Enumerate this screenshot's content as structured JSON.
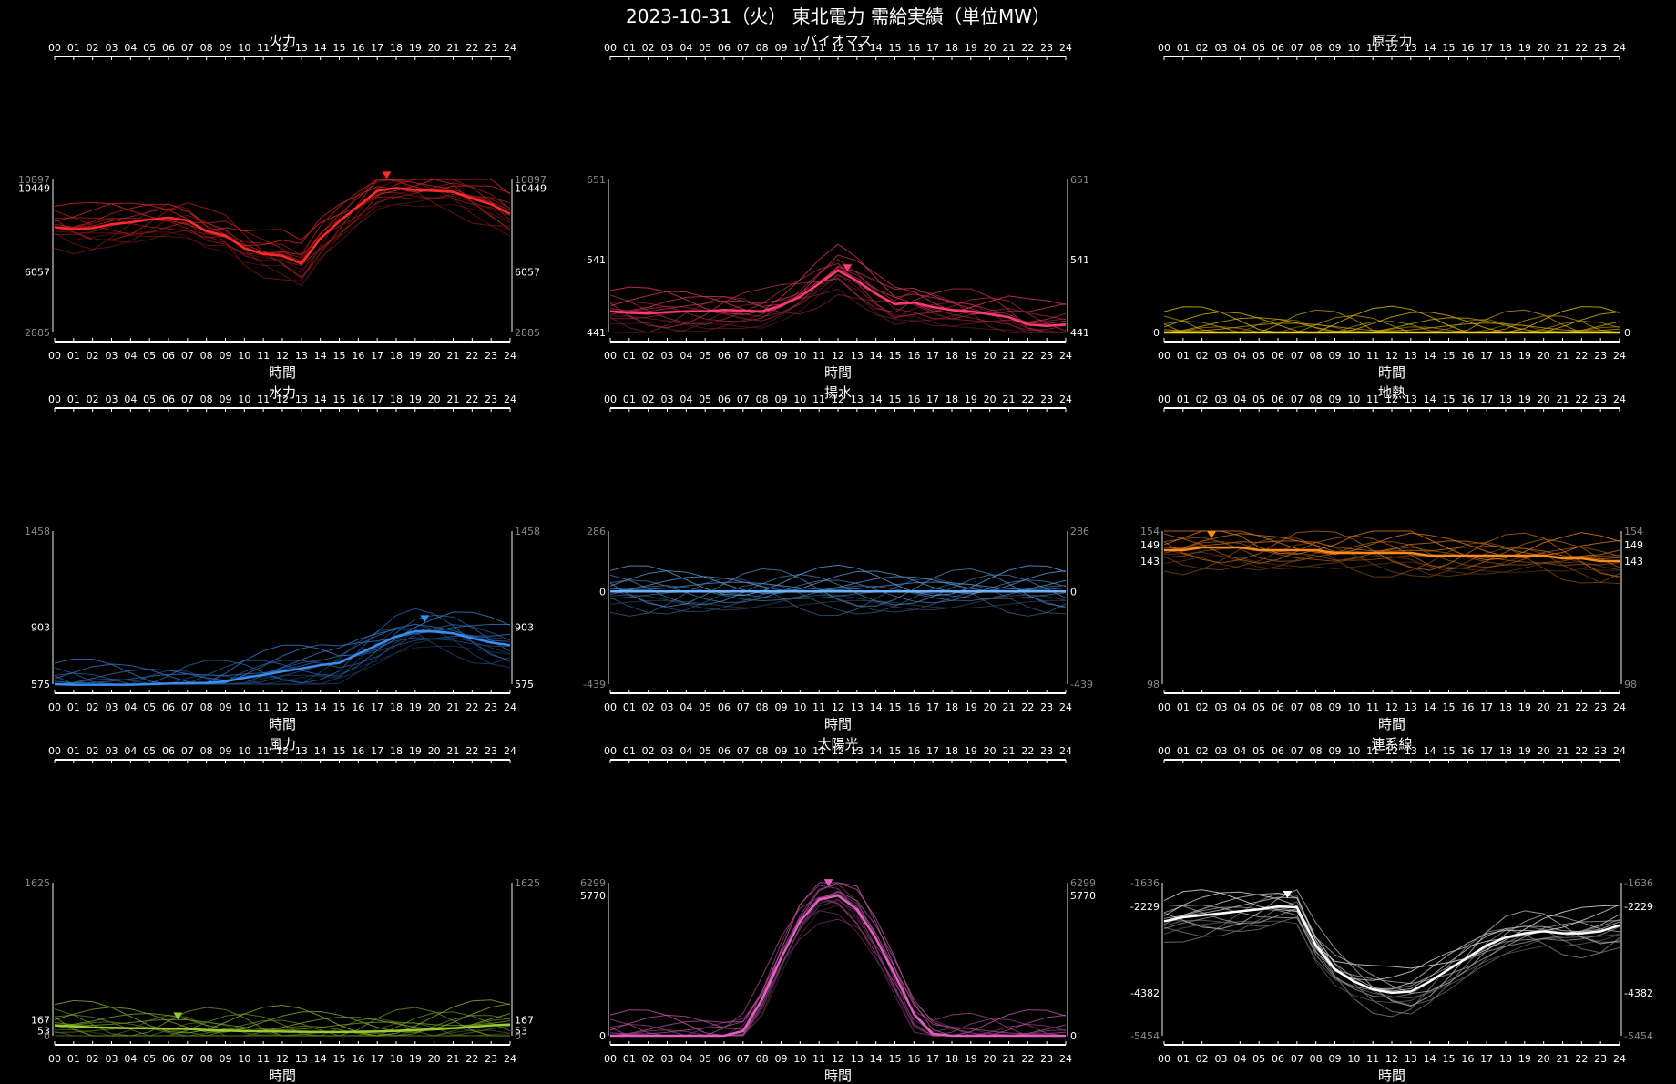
{
  "title": "2023-10-31（火） 東北電力 需給実績（単位MW）",
  "xlabel": "時間",
  "hour_ticks": [
    "00",
    "01",
    "02",
    "03",
    "04",
    "05",
    "06",
    "07",
    "08",
    "09",
    "10",
    "11",
    "12",
    "13",
    "14",
    "15",
    "16",
    "17",
    "18",
    "19",
    "20",
    "21",
    "22",
    "23",
    "24"
  ],
  "chart_data": [
    {
      "type": "line",
      "title": "火力",
      "color": "#ff2a2a",
      "ylim": [
        2885,
        10897
      ],
      "ticks": {
        "max": 10897,
        "hi": 10449,
        "lo": 6057,
        "min": 2885
      },
      "show_xlabel": true,
      "series": [
        {
          "values": [
            8400,
            8300,
            8350,
            8550,
            8650,
            8800,
            8900,
            8750,
            8200,
            7950,
            7300,
            7000,
            6900,
            6500,
            7800,
            8700,
            9500,
            10300,
            10449,
            10350,
            10300,
            10250,
            9900,
            9600,
            9100
          ]
        }
      ],
      "marker_hour": 17.5
    },
    {
      "type": "line",
      "title": "バイオマス",
      "color": "#ff3c6e",
      "ylim": [
        441,
        651
      ],
      "ticks": {
        "max": 651,
        "hi": 541,
        "lo": 441,
        "min": null
      },
      "show_xlabel": true,
      "series": [
        {
          "values": [
            470,
            468,
            467,
            469,
            470,
            470,
            472,
            471,
            470,
            478,
            490,
            508,
            526,
            512,
            494,
            480,
            482,
            476,
            472,
            470,
            466,
            462,
            452,
            450,
            452
          ]
        }
      ],
      "marker_hour": 12.5
    },
    {
      "type": "line",
      "title": "原子力",
      "color": "#ffd700",
      "ylim": [
        0,
        1
      ],
      "ticks": {
        "max": null,
        "hi": null,
        "lo": 0,
        "min": null
      },
      "show_xlabel": true,
      "series": [
        {
          "values": [
            0,
            0,
            0,
            0,
            0,
            0,
            0,
            0,
            0,
            0,
            0,
            0,
            0,
            0,
            0,
            0,
            0,
            0,
            0,
            0,
            0,
            0,
            0,
            0,
            0
          ]
        }
      ],
      "marker_hour": null
    },
    {
      "type": "line",
      "title": "水力",
      "color": "#3a8ef0",
      "ylim": [
        575,
        1458
      ],
      "ticks": {
        "max": 1458,
        "hi": 903,
        "lo": 575,
        "min": null
      },
      "show_xlabel": true,
      "series": [
        {
          "values": [
            575,
            572,
            572,
            572,
            572,
            575,
            578,
            580,
            582,
            590,
            612,
            628,
            648,
            665,
            685,
            698,
            750,
            800,
            850,
            880,
            878,
            868,
            840,
            815,
            800
          ]
        }
      ],
      "marker_hour": 19.5
    },
    {
      "type": "line",
      "title": "揚水",
      "color": "#6ab4ff",
      "ylim": [
        -439,
        286
      ],
      "ticks": {
        "max": 286,
        "hi": null,
        "lo": 0,
        "min": -439
      },
      "show_xlabel": true,
      "series": [
        {
          "values": [
            0,
            0,
            0,
            0,
            0,
            0,
            0,
            0,
            0,
            0,
            0,
            0,
            0,
            0,
            0,
            0,
            0,
            0,
            0,
            0,
            0,
            0,
            0,
            0,
            0
          ]
        }
      ],
      "marker_hour": null
    },
    {
      "type": "line",
      "title": "地熱",
      "color": "#ff8c1a",
      "ylim": [
        98,
        154
      ],
      "ticks": {
        "max": 154,
        "hi": 149,
        "lo": 143,
        "min": 98
      },
      "show_xlabel": true,
      "series": [
        {
          "values": [
            147,
            147,
            148,
            148,
            148,
            147,
            147,
            147,
            147,
            146,
            146,
            146,
            146,
            146,
            145,
            145,
            145,
            145,
            145,
            145,
            145,
            144,
            144,
            143,
            143
          ]
        }
      ],
      "marker_hour": 2.5
    },
    {
      "type": "line",
      "title": "風力",
      "color": "#9acd32",
      "ylim": [
        0,
        1625
      ],
      "ticks": {
        "max": 1625,
        "hi": 167,
        "lo": 53,
        "min": 0
      },
      "show_xlabel": true,
      "series": [
        {
          "values": [
            110,
            100,
            90,
            85,
            80,
            78,
            75,
            72,
            60,
            55,
            50,
            48,
            45,
            42,
            40,
            40,
            42,
            45,
            52,
            60,
            68,
            80,
            95,
            110,
            120
          ]
        }
      ],
      "marker_hour": 6.5
    },
    {
      "type": "line",
      "title": "太陽光",
      "color": "#e060c0",
      "ylim": [
        0,
        6299
      ],
      "ticks": {
        "max": 6299,
        "hi": 5770,
        "lo": 0,
        "min": null
      },
      "show_xlabel": true,
      "series": [
        {
          "values": [
            0,
            0,
            0,
            0,
            0,
            0,
            0,
            200,
            1500,
            3200,
            4700,
            5600,
            5770,
            5200,
            4000,
            2500,
            900,
            80,
            0,
            0,
            0,
            0,
            0,
            0,
            0
          ]
        }
      ],
      "marker_hour": 11.5
    },
    {
      "type": "line",
      "title": "連系線",
      "color": "#ffffff",
      "ylim": [
        -5454,
        -1636
      ],
      "ticks": {
        "max": -1636,
        "hi": -2229,
        "lo": -4382,
        "min": -5454
      },
      "show_xlabel": true,
      "series": [
        {
          "values": [
            -2600,
            -2500,
            -2450,
            -2400,
            -2350,
            -2300,
            -2229,
            -2250,
            -3200,
            -3800,
            -4100,
            -4300,
            -4382,
            -4350,
            -4100,
            -3800,
            -3500,
            -3200,
            -3000,
            -2900,
            -2850,
            -2900,
            -2900,
            -2850,
            -2700
          ]
        }
      ],
      "marker_hour": 6.5
    }
  ]
}
